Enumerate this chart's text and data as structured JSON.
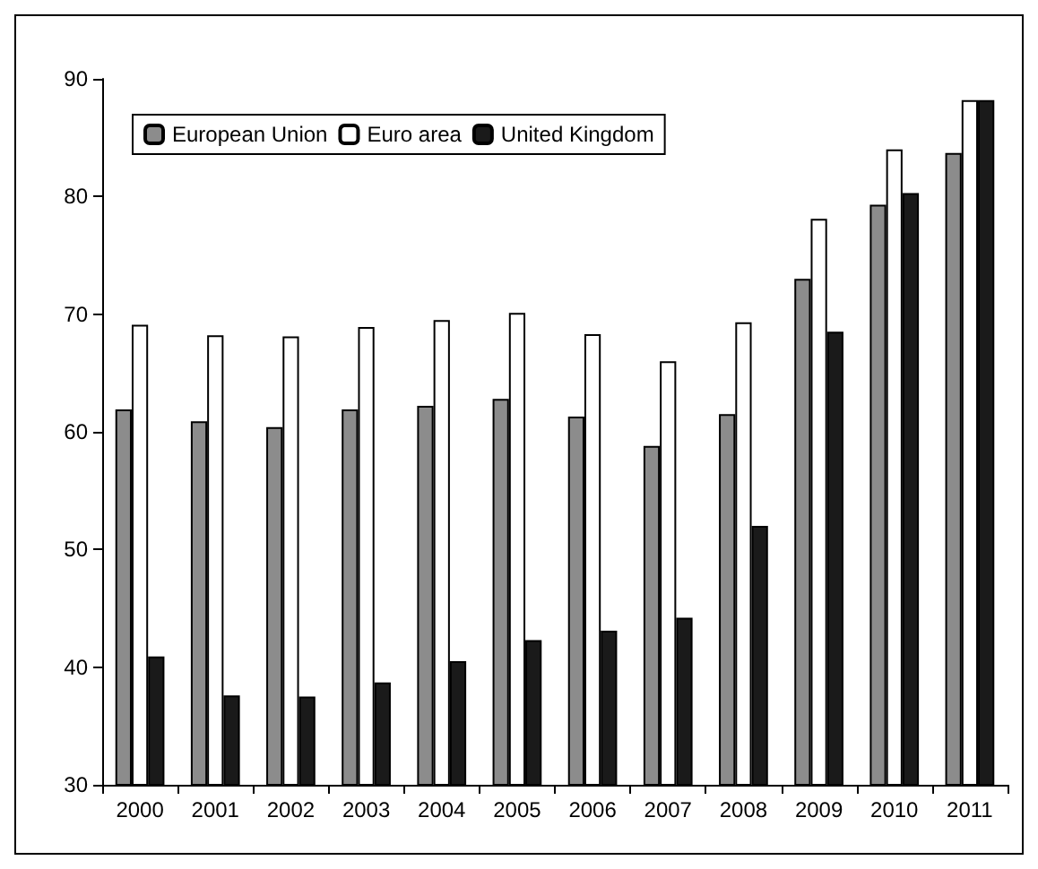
{
  "chart_data": {
    "type": "bar",
    "categories": [
      "2000",
      "2001",
      "2002",
      "2003",
      "2004",
      "2005",
      "2006",
      "2007",
      "2008",
      "2009",
      "2010",
      "2011"
    ],
    "series": [
      {
        "name": "European Union",
        "color": "#8c8c8c",
        "values": [
          61.9,
          60.9,
          60.4,
          61.9,
          62.2,
          62.8,
          61.3,
          58.8,
          61.5,
          73.0,
          79.3,
          83.7
        ]
      },
      {
        "name": "Euro area",
        "color": "#ffffff",
        "values": [
          69.1,
          68.2,
          68.1,
          68.9,
          69.5,
          70.1,
          68.3,
          66.0,
          69.3,
          78.1,
          84.0,
          88.2
        ]
      },
      {
        "name": "United Kingdom",
        "color": "#1a1a1a",
        "values": [
          40.9,
          37.6,
          37.5,
          38.7,
          40.5,
          42.3,
          43.1,
          44.2,
          52.0,
          68.5,
          80.3,
          88.2
        ]
      }
    ],
    "ylim": [
      30,
      90
    ],
    "yticks": [
      30,
      40,
      50,
      60,
      70,
      80,
      90
    ],
    "grid": false,
    "legend": "top left"
  }
}
